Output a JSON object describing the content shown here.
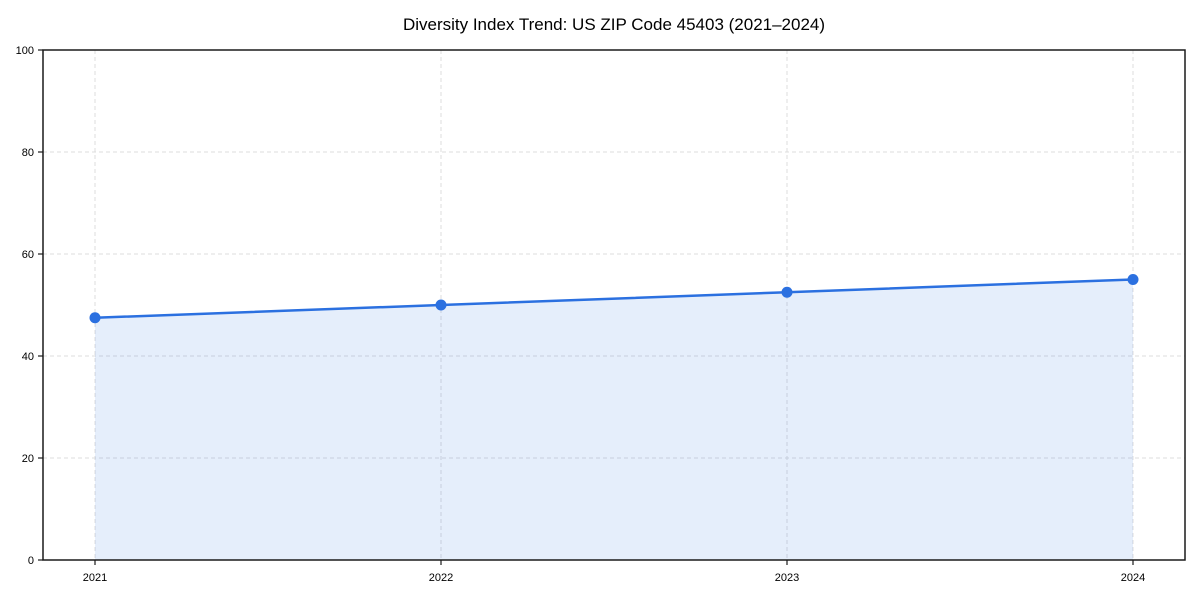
{
  "chart_data": {
    "type": "line",
    "title": "Diversity Index Trend: US ZIP Code 45403 (2021–2024)",
    "categories": [
      "2021",
      "2022",
      "2023",
      "2024"
    ],
    "series": [
      {
        "name": "Diversity Index",
        "values": [
          47.5,
          50.0,
          52.5,
          55.0
        ]
      }
    ],
    "xlabel": "",
    "ylabel": "",
    "ylim": [
      0,
      100
    ],
    "yticks": [
      0,
      20,
      40,
      60,
      80,
      100
    ],
    "grid": true,
    "grid_style": "dashed",
    "legend_position": "none",
    "area_fill": true,
    "markers": true,
    "colors": {
      "line": "#2b70e0",
      "marker": "#2b70e0",
      "area_fill_opacity": 0.12,
      "grid": "#dcdcdc",
      "axis": "#1a1a1a",
      "tick_text": "#000000",
      "background": "#ffffff"
    }
  }
}
